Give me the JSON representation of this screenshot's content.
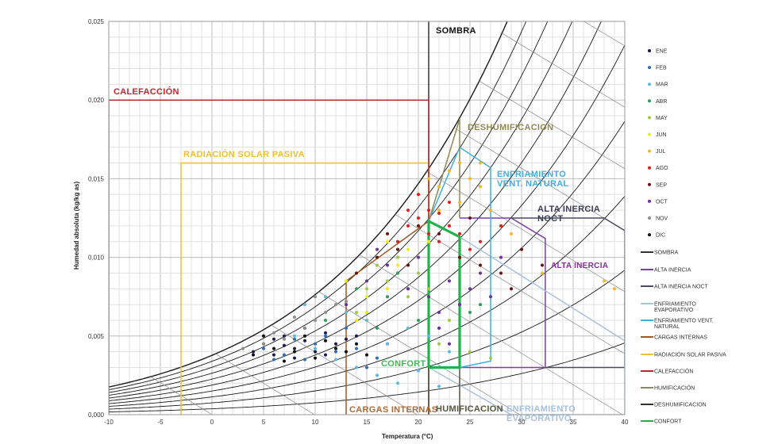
{
  "chart_data": {
    "type": "scatter",
    "xlabel": "Temperatura (°C)",
    "ylabel": "Humedad absoluta (kg/kg as)",
    "xlim": [
      -10,
      40
    ],
    "ylim": [
      0,
      0.025
    ],
    "x_ticks": [
      "-10",
      "-5",
      "0",
      "5",
      "10",
      "15",
      "20",
      "25",
      "30",
      "35",
      "40"
    ],
    "y_ticks": [
      "0,000",
      "0,005",
      "0,010",
      "0,015",
      "0,020",
      "0,025"
    ],
    "grid": true,
    "legend_position": "right",
    "series": [
      {
        "name": "ENE",
        "color": "#1c1c4e",
        "points": [
          [
            4,
            0.004
          ],
          [
            5,
            0.0045
          ],
          [
            6,
            0.0038
          ],
          [
            7,
            0.005
          ],
          [
            8,
            0.0042
          ],
          [
            9,
            0.0047
          ],
          [
            10,
            0.004
          ],
          [
            11,
            0.0052
          ],
          [
            12,
            0.0045
          ],
          [
            13,
            0.0048
          ],
          [
            8,
            0.0036
          ],
          [
            6,
            0.0048
          ],
          [
            9,
            0.0055
          ],
          [
            11,
            0.0038
          ],
          [
            14,
            0.005
          ],
          [
            7,
            0.0044
          ]
        ]
      },
      {
        "name": "FEB",
        "color": "#2f6fb6",
        "points": [
          [
            5,
            0.0042
          ],
          [
            7,
            0.0038
          ],
          [
            9,
            0.0035
          ],
          [
            10,
            0.0045
          ],
          [
            12,
            0.004
          ],
          [
            14,
            0.0042
          ],
          [
            16,
            0.0036
          ],
          [
            11,
            0.005
          ],
          [
            8,
            0.0048
          ],
          [
            13,
            0.0055
          ],
          [
            15,
            0.003
          ],
          [
            17,
            0.0045
          ],
          [
            6,
            0.0035
          ]
        ]
      },
      {
        "name": "MAR",
        "color": "#5bb9e2",
        "points": [
          [
            8,
            0.005
          ],
          [
            10,
            0.0042
          ],
          [
            12,
            0.0035
          ],
          [
            14,
            0.003
          ],
          [
            16,
            0.0025
          ],
          [
            18,
            0.002
          ],
          [
            20,
            0.0028
          ],
          [
            22,
            0.0018
          ],
          [
            17,
            0.0045
          ],
          [
            19,
            0.0055
          ],
          [
            21,
            0.005
          ],
          [
            23,
            0.004
          ],
          [
            15,
            0.006
          ],
          [
            13,
            0.0065
          ],
          [
            11,
            0.0075
          ],
          [
            9,
            0.007
          ]
        ]
      },
      {
        "name": "ABR",
        "color": "#2b9e5c",
        "points": [
          [
            11,
            0.006
          ],
          [
            13,
            0.007
          ],
          [
            15,
            0.0065
          ],
          [
            17,
            0.0075
          ],
          [
            19,
            0.008
          ],
          [
            20,
            0.006
          ],
          [
            22,
            0.0055
          ],
          [
            24,
            0.007
          ],
          [
            25,
            0.0065
          ],
          [
            26,
            0.007
          ],
          [
            14,
            0.008
          ],
          [
            18,
            0.009
          ],
          [
            16,
            0.0055
          ]
        ]
      },
      {
        "name": "MAY",
        "color": "#9dcc3d",
        "points": [
          [
            13,
            0.007
          ],
          [
            15,
            0.008
          ],
          [
            17,
            0.0085
          ],
          [
            19,
            0.0075
          ],
          [
            21,
            0.008
          ],
          [
            23,
            0.006
          ],
          [
            25,
            0.004
          ],
          [
            27,
            0.0036
          ],
          [
            16,
            0.0095
          ],
          [
            18,
            0.01
          ],
          [
            20,
            0.009
          ],
          [
            14,
            0.0065
          ],
          [
            22,
            0.0045
          ]
        ]
      },
      {
        "name": "JUN",
        "color": "#eef000",
        "points": [
          [
            12,
            0.007
          ],
          [
            13,
            0.0085
          ],
          [
            14,
            0.009
          ],
          [
            15,
            0.0075
          ],
          [
            16,
            0.01
          ],
          [
            17,
            0.011
          ],
          [
            18,
            0.0095
          ],
          [
            19,
            0.0105
          ],
          [
            20,
            0.012
          ],
          [
            15,
            0.0065
          ],
          [
            17,
            0.008
          ],
          [
            14,
            0.006
          ],
          [
            21,
            0.011
          ]
        ]
      },
      {
        "name": "JUL",
        "color": "#f5b820",
        "points": [
          [
            20,
            0.014
          ],
          [
            21,
            0.015
          ],
          [
            22,
            0.0145
          ],
          [
            23,
            0.0155
          ],
          [
            24,
            0.016
          ],
          [
            25,
            0.015
          ],
          [
            26,
            0.0145
          ],
          [
            27,
            0.013
          ],
          [
            28,
            0.012
          ],
          [
            29,
            0.0115
          ],
          [
            22,
            0.013
          ],
          [
            24,
            0.0135
          ],
          [
            30,
            0.0105
          ],
          [
            38,
            0.0085
          ],
          [
            39,
            0.008
          ],
          [
            32,
            0.009
          ],
          [
            26,
            0.016
          ]
        ]
      },
      {
        "name": "AGO",
        "color": "#e31a1c",
        "points": [
          [
            18,
            0.011
          ],
          [
            19,
            0.012
          ],
          [
            20,
            0.0125
          ],
          [
            21,
            0.013
          ],
          [
            22,
            0.0128
          ],
          [
            23,
            0.012
          ],
          [
            24,
            0.0115
          ],
          [
            20,
            0.014
          ],
          [
            21,
            0.0115
          ],
          [
            22,
            0.011
          ],
          [
            25,
            0.0105
          ],
          [
            19,
            0.013
          ],
          [
            23,
            0.0135
          ],
          [
            26,
            0.011
          ],
          [
            28,
            0.012
          ]
        ]
      },
      {
        "name": "SEP",
        "color": "#6a1212",
        "points": [
          [
            14,
            0.009
          ],
          [
            16,
            0.01
          ],
          [
            18,
            0.0105
          ],
          [
            20,
            0.012
          ],
          [
            22,
            0.0115
          ],
          [
            24,
            0.01
          ],
          [
            26,
            0.0095
          ],
          [
            28,
            0.009
          ],
          [
            30,
            0.0105
          ],
          [
            32,
            0.0095
          ],
          [
            17,
            0.0115
          ],
          [
            19,
            0.0095
          ],
          [
            25,
            0.0125
          ],
          [
            29,
            0.008
          ]
        ]
      },
      {
        "name": "OCT",
        "color": "#7030a0",
        "points": [
          [
            13,
            0.007
          ],
          [
            15,
            0.0085
          ],
          [
            17,
            0.0095
          ],
          [
            19,
            0.008
          ],
          [
            21,
            0.0075
          ],
          [
            22,
            0.0065
          ],
          [
            23,
            0.0085
          ],
          [
            24,
            0.007
          ],
          [
            25,
            0.008
          ],
          [
            26,
            0.009
          ],
          [
            27,
            0.0075
          ],
          [
            28,
            0.01
          ],
          [
            20,
            0.01
          ],
          [
            22,
            0.0055
          ],
          [
            23,
            0.0045
          ],
          [
            16,
            0.0105
          ]
        ]
      },
      {
        "name": "NOV",
        "color": "#8f8f8f",
        "points": [
          [
            3,
            0.0042
          ],
          [
            5,
            0.0045
          ],
          [
            7,
            0.0048
          ],
          [
            9,
            0.0055
          ],
          [
            10,
            0.006
          ],
          [
            11,
            0.0065
          ],
          [
            12,
            0.007
          ],
          [
            13,
            0.0072
          ],
          [
            8,
            0.0062
          ],
          [
            10,
            0.0075
          ],
          [
            6,
            0.0052
          ]
        ]
      },
      {
        "name": "DIC",
        "color": "#111111",
        "points": [
          [
            4,
            0.0038
          ],
          [
            6,
            0.0042
          ],
          [
            8,
            0.004
          ],
          [
            10,
            0.0036
          ],
          [
            12,
            0.0042
          ],
          [
            9,
            0.005
          ],
          [
            11,
            0.0047
          ],
          [
            13,
            0.004
          ],
          [
            7,
            0.0034
          ],
          [
            5,
            0.005
          ],
          [
            14,
            0.0045
          ],
          [
            15,
            0.0038
          ]
        ]
      }
    ],
    "zones": [
      {
        "key": "sombra",
        "name": "SOMBRA",
        "color": "#333333",
        "points": [
          [
            21,
            0
          ],
          [
            21,
            0.025
          ]
        ]
      },
      {
        "key": "alta_inercia",
        "name": "ALTA INERCIA",
        "color": "#7b3fa6",
        "points": [
          [
            24,
            0.0125
          ],
          [
            29,
            0.0125
          ],
          [
            32.3,
            0.0112
          ],
          [
            32.3,
            0.003
          ],
          [
            24,
            0.003
          ]
        ]
      },
      {
        "key": "alta_inercia_noct",
        "name": "ALTA INERCIA NOCT",
        "color": "#4a4a5e",
        "points": [
          [
            29,
            0.0125
          ],
          [
            38,
            0.0125
          ],
          [
            40,
            0.0117
          ],
          [
            40,
            0.003
          ],
          [
            32.3,
            0.003
          ]
        ]
      },
      {
        "key": "enf_evaporativo",
        "name": "ENFRIAMIENTO EVAPORATIVO",
        "color": "#a9c2de",
        "points": [
          [
            24,
            0.0113
          ],
          [
            40,
            0.0047
          ],
          [
            40,
            0
          ],
          [
            29,
            0
          ],
          [
            21,
            0.003
          ]
        ]
      },
      {
        "key": "enf_vent_natural",
        "name": "ENFRIAMIENTO VENT. NATURAL",
        "color": "#3fb0de",
        "points": [
          [
            21,
            0.0123
          ],
          [
            24,
            0.017
          ],
          [
            27,
            0.0157
          ],
          [
            27,
            0.0034
          ],
          [
            24,
            0.003
          ]
        ]
      },
      {
        "key": "cargas_internas",
        "name": "CARGAS INTERNAS",
        "color": "#9b5a2a",
        "points": [
          [
            13,
            0
          ],
          [
            13,
            0.0085
          ],
          [
            21,
            0.0123
          ]
        ]
      },
      {
        "key": "radiacion",
        "name": "RADIACIÓN SOLAR PASIVA",
        "color": "#f0c030",
        "points": [
          [
            -3,
            0
          ],
          [
            -3,
            0.016
          ],
          [
            21,
            0.016
          ],
          [
            21,
            0
          ]
        ]
      },
      {
        "key": "calefaccion",
        "name": "CALEFACCIÓN",
        "color": "#c0272d",
        "points": [
          [
            -10,
            0
          ],
          [
            -10,
            0.02
          ],
          [
            21,
            0.02
          ],
          [
            21,
            0
          ]
        ]
      },
      {
        "key": "humificacion",
        "name": "HUMIFICACIÓN",
        "color": "#555540",
        "points": [
          [
            21,
            0
          ],
          [
            21,
            0.003
          ],
          [
            24,
            0.003
          ],
          [
            24,
            0
          ]
        ]
      },
      {
        "key": "deshumificacion",
        "name": "DESHUMIFICACION",
        "color": "#8d8a55",
        "points": [
          [
            21,
            0.0123
          ],
          [
            24,
            0.0188
          ],
          [
            24,
            0.0125
          ]
        ]
      },
      {
        "key": "confort",
        "name": "CONFORT",
        "color": "#22b24c",
        "points": [
          [
            21,
            0.003
          ],
          [
            21,
            0.0123
          ],
          [
            24,
            0.0113
          ],
          [
            24,
            0.003
          ],
          [
            21,
            0.003
          ]
        ]
      }
    ],
    "zone_labels": {
      "sombra": "SOMBRA",
      "calefaccion": "CALEFACCIÓN",
      "radiacion": "RADIACIÓN  SOLAR  PASIVA",
      "deshumificacion": "DESHUMIFICACION",
      "enf_vent_1": "ENFRIAMIENTO",
      "enf_vent_2": "VENT. NATURAL",
      "noct_1": "ALTA  INERCIA",
      "noct_2": "NOCT",
      "alta_inercia": "ALTA INERCIA",
      "confort": "CONFORT",
      "cargas": "CARGAS  INTERNAS",
      "humificacion": "HUMIFICACION",
      "evap_1": "ENFRIAMIENTO",
      "evap_2": "EVAPORATIVO"
    },
    "line_legend": [
      {
        "label": "SOMBRA",
        "color": "#333333"
      },
      {
        "label": "ALTA INERCIA",
        "color": "#7b3fa6"
      },
      {
        "label": "ALTA INERCIA NOCT",
        "color": "#4a4a5e"
      },
      {
        "label": "ENFRIAMIENTO",
        "label2": "EVAPORATIVO",
        "color": "#a9c2de"
      },
      {
        "label": "ENFRIAMIENTO VENT.",
        "label2": "NATURAL",
        "color": "#3fb0de"
      },
      {
        "label": "CARGAS INTERNAS",
        "color": "#9b5a2a"
      },
      {
        "label": "RADIACIÓN SOLAR PASIVA",
        "color": "#f0c030"
      },
      {
        "label": "CALEFACCIÓN",
        "color": "#c0272d"
      },
      {
        "label": "HUMIFICACIÓN",
        "color": "#8d8a55"
      },
      {
        "label": "DESHUMIFICACION",
        "color": "#333322"
      },
      {
        "label": "CONFORT",
        "color": "#22b24c"
      }
    ]
  }
}
